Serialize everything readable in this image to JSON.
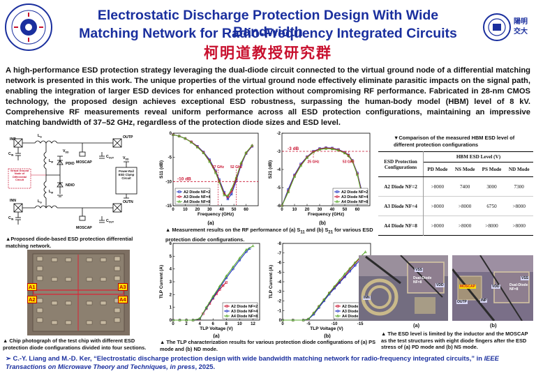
{
  "header": {
    "title_line1": "Electrostatic Discharge Protection Design With Wide Bandwidth",
    "title_line2": "Matching Network for Radio-Frequency Integrated Circuits",
    "lab_name": "柯明道教授研究群",
    "left_logo_text": "Institute of Electronics Engineering & Institute of Electronics, NCTU",
    "right_logo_text": "國立陽明交通大學 NYCU"
  },
  "abstract": "A high-performance ESD protection strategy leveraging the dual-diode circuit connected to the virtual ground node of a differential matching network is presented in this work. The unique properties of the virtual ground node effectively eliminate parasitic impacts on the signal path, enabling the integration of larger ESD devices for enhanced protection without compromising RF performance. Fabricated in 28-nm CMOS technology, the proposed design achieves exceptional ESD robustness, surpassing the human-body model (HBM) level of 8 kV. Comprehensive RF measurements reveal uniform performance across all ESD protection configurations, maintaining an impressive matching bandwidth of 37–52 GHz, regardless of the protection diode sizes and ESD level.",
  "schematic": {
    "labels": {
      "inp": "INP",
      "inn": "INN",
      "outp": "OUTP",
      "outn": "OUTN",
      "cin_top": "C",
      "cin_sub": "IN",
      "cin_bot": "C",
      "lm": "L",
      "lm_sub": "M",
      "lg_top": "L",
      "lg_sub": "G",
      "vdd": "V",
      "vdd_sub": "DD",
      "pdio": "PDIO",
      "ndio": "NDIO",
      "moscap_top": "MOSCAP",
      "moscap_bot": "MOSCAP",
      "cout": "C",
      "cout_sub": "OUT",
      "vdd2": "V",
      "vdd2_sub": "DD",
      "virtual_ground": "Virtual Ground Node of Differential Circuit",
      "clamp_box": "Power-Rail ESD Clamp Circuit"
    },
    "caption": "▲Proposed diode-based ESD protection differential matching network."
  },
  "s11_chart": {
    "panel_label": "(a)",
    "markers": {
      "db": "-10 dB",
      "f1": "37 GHz",
      "f2": "52 GHz"
    }
  },
  "s21_chart": {
    "panel_label": "(b)",
    "markers": {
      "db": "-3 dB",
      "f1": "25 GHz",
      "f2": "53 GHz"
    }
  },
  "rf_caption_a": "▲ Measurement results on the RF performance of (a) S",
  "rf_caption_sub11": "11",
  "rf_caption_b": " and (b) S",
  "rf_caption_sub21": "21",
  "rf_caption_c": " for various ESD protection diode configurations.",
  "table": {
    "caption": "▼Comparison of the measured HBM ESD level of different protection configurations",
    "group_header": "HBM ESD Level (V)",
    "config_header": "ESD Protection Configurations",
    "modes": [
      "PD Mode",
      "NS Mode",
      "PS Mode",
      "ND Mode"
    ],
    "rows": [
      {
        "config": "A2 Diode NF=2",
        "values": [
          ">8000",
          "7400",
          "3000",
          "7300"
        ]
      },
      {
        "config": "A3 Diode NF=4",
        "values": [
          ">8000",
          ">8000",
          "6750",
          ">8000"
        ]
      },
      {
        "config": "A4 Diode NF=8",
        "values": [
          ">8000",
          ">8000",
          ">8000",
          ">8000"
        ]
      }
    ]
  },
  "chip_photo": {
    "labels": [
      "A1",
      "A2",
      "A3",
      "A4"
    ],
    "caption": "▲ Chip photograph of the test chip with different ESD protection diode configurations divided into four sections."
  },
  "tlp_caption": "▲ The TLP characterization results for various protection diode configurations of (a) PS mode and (b) ND mode.",
  "tlp_a": {
    "panel_label": "(a)"
  },
  "tlp_b": {
    "panel_label": "(b)"
  },
  "failure_photos": {
    "a_label": "(a)",
    "b_label": "(b)",
    "a_tags": [
      "VSS",
      "Dual-Diode NF=8",
      "VDD",
      "INN"
    ],
    "b_tags": [
      "VSS",
      "MOSCAP",
      "Dual-Diode NF=8",
      "VDD",
      "OUTP",
      "INP"
    ],
    "caption": "▲ The ESD level is limited by the inductor and the MOSCAP as the test structures with eight diode fingers after the ESD stress of (a) PD mode and (b) NS mode."
  },
  "reference": {
    "prefix": "➢ C.-Y. Liang and M.-D. Ker, “Electrostatic discharge protection design with wide bandwidth matching network for radio-frequency integrated circuits,” in ",
    "journal": "IEEE Transactions on Microwave Theory and Techniques, in press",
    "suffix": ", 2025."
  },
  "chart_data": [
    {
      "type": "line",
      "xlabel": "Frequency (GHz)",
      "ylabel": "S11 (dB)",
      "xlim": [
        0,
        70
      ],
      "ylim": [
        -15,
        0
      ],
      "xticks": [
        0,
        10,
        20,
        30,
        40,
        50,
        60
      ],
      "yticks": [
        0,
        -5,
        -10,
        -15
      ],
      "legend_position": "bottom-left",
      "series": [
        {
          "name": "A2 Diode NF=2",
          "color": "#1c2fbf",
          "x": [
            0,
            5,
            10,
            15,
            20,
            25,
            30,
            35,
            38,
            42,
            45,
            48,
            52,
            56,
            60,
            65
          ],
          "y": [
            -0.3,
            -0.6,
            -1.1,
            -1.8,
            -2.7,
            -3.9,
            -5.5,
            -7.8,
            -9.6,
            -12.2,
            -13.6,
            -12.6,
            -9.8,
            -6.5,
            -4.2,
            -2.7
          ]
        },
        {
          "name": "A3 Diode NF=4",
          "color": "#c8102e",
          "x": [
            0,
            5,
            10,
            15,
            20,
            25,
            30,
            35,
            38,
            42,
            45,
            48,
            52,
            56,
            60,
            65
          ],
          "y": [
            -0.3,
            -0.6,
            -1.1,
            -1.8,
            -2.8,
            -4.0,
            -5.7,
            -8.0,
            -9.9,
            -12.5,
            -13.2,
            -12.0,
            -9.4,
            -6.3,
            -4.1,
            -2.6
          ]
        },
        {
          "name": "A4 Diode NF=8",
          "color": "#5aa82d",
          "x": [
            0,
            5,
            10,
            15,
            20,
            25,
            30,
            35,
            38,
            42,
            45,
            48,
            52,
            56,
            60,
            65
          ],
          "y": [
            -0.3,
            -0.6,
            -1.1,
            -1.9,
            -2.9,
            -4.1,
            -5.9,
            -8.2,
            -10.1,
            -12.8,
            -12.9,
            -11.6,
            -9.1,
            -6.1,
            -4.0,
            -2.5
          ]
        }
      ]
    },
    {
      "type": "line",
      "xlabel": "Frequency (GHz)",
      "ylabel": "S21 (dB)",
      "xlim": [
        0,
        70
      ],
      "ylim": [
        -6,
        -2
      ],
      "xticks": [
        0,
        10,
        20,
        30,
        40,
        50,
        60
      ],
      "yticks": [
        -2,
        -3,
        -4,
        -5,
        -6
      ],
      "legend_position": "bottom-right",
      "series": [
        {
          "name": "A2 Diode NF=2",
          "color": "#1c2fbf",
          "x": [
            0,
            5,
            10,
            15,
            20,
            25,
            30,
            35,
            40,
            45,
            50,
            53,
            56,
            60,
            65
          ],
          "y": [
            -6.0,
            -5.1,
            -4.3,
            -3.7,
            -3.3,
            -3.0,
            -2.85,
            -2.8,
            -2.82,
            -2.9,
            -3.05,
            -3.2,
            -3.5,
            -4.2,
            -5.6
          ]
        },
        {
          "name": "A3 Diode NF=4",
          "color": "#c8102e",
          "x": [
            0,
            5,
            10,
            15,
            20,
            25,
            30,
            35,
            40,
            45,
            50,
            53,
            56,
            60,
            65
          ],
          "y": [
            -6.0,
            -5.2,
            -4.35,
            -3.75,
            -3.32,
            -3.02,
            -2.87,
            -2.82,
            -2.84,
            -2.92,
            -3.07,
            -3.22,
            -3.52,
            -4.25,
            -5.7
          ]
        },
        {
          "name": "A4 Diode NF=8",
          "color": "#5aa82d",
          "x": [
            0,
            5,
            10,
            15,
            20,
            25,
            30,
            35,
            40,
            45,
            50,
            53,
            56,
            60,
            65
          ],
          "y": [
            -6.0,
            -5.25,
            -4.4,
            -3.8,
            -3.35,
            -3.05,
            -2.9,
            -2.85,
            -2.87,
            -2.95,
            -3.1,
            -3.25,
            -3.55,
            -4.3,
            -5.8
          ]
        }
      ]
    },
    {
      "type": "line",
      "xlabel": "TLP Voltage (V)",
      "ylabel": "TLP Current (A)",
      "xlim": [
        0,
        13
      ],
      "ylim": [
        0,
        6
      ],
      "xticks": [
        0,
        2,
        4,
        6,
        8,
        10,
        12
      ],
      "yticks": [
        0,
        1,
        2,
        3,
        4,
        5,
        6
      ],
      "legend_position": "bottom-right",
      "series": [
        {
          "name": "A2 Diode NF=2",
          "color": "#c8102e",
          "x": [
            0,
            1,
            2,
            3,
            4,
            4.5,
            5,
            5.5,
            6,
            6.5,
            7,
            7.5,
            8
          ],
          "y": [
            0,
            0,
            0,
            0,
            0.08,
            0.5,
            0.9,
            1.3,
            1.7,
            2.05,
            2.4,
            2.7,
            2.95
          ]
        },
        {
          "name": "A3 Diode NF=4",
          "color": "#1c2fbf",
          "x": [
            0,
            1,
            2,
            3,
            4,
            5,
            6,
            7,
            8,
            9,
            10,
            11,
            11.5
          ],
          "y": [
            0,
            0,
            0,
            0,
            0.1,
            0.95,
            1.75,
            2.55,
            3.3,
            4.0,
            4.7,
            5.35,
            5.6
          ]
        },
        {
          "name": "A4 Diode NF=8",
          "color": "#5aa82d",
          "x": [
            0,
            1,
            2,
            3,
            4,
            5,
            6,
            7,
            8,
            9,
            10,
            11,
            12
          ],
          "y": [
            0,
            0,
            0,
            0,
            0.12,
            1.0,
            1.85,
            2.65,
            3.45,
            4.15,
            4.85,
            5.5,
            5.8
          ]
        }
      ]
    },
    {
      "type": "line",
      "xlabel": "TLP Voltage (V)",
      "ylabel": "TLP Current (A)",
      "xlim": [
        0,
        -17
      ],
      "ylim": [
        0,
        -8
      ],
      "xticks": [
        0,
        -5,
        -10,
        -15
      ],
      "yticks": [
        0,
        -1,
        -2,
        -3,
        -4,
        -5,
        -6,
        -7,
        -8
      ],
      "legend_position": "bottom-right",
      "series": [
        {
          "name": "A2 Diode NF=2",
          "color": "#c8102e",
          "x": [
            0,
            -2,
            -4,
            -5,
            -6,
            -7,
            -8,
            -9,
            -10,
            -11,
            -12,
            -13,
            -14,
            -15
          ],
          "y": [
            0,
            0,
            0,
            -0.1,
            -0.7,
            -1.4,
            -2.1,
            -2.8,
            -3.4,
            -4.0,
            -4.6,
            -5.3,
            -5.9,
            -6.5
          ]
        },
        {
          "name": "A3 Diode NF=4",
          "color": "#1c2fbf",
          "x": [
            0,
            -2,
            -4,
            -5,
            -6,
            -7,
            -8,
            -9,
            -10,
            -11,
            -12,
            -13,
            -14,
            -15
          ],
          "y": [
            0,
            0,
            0,
            -0.1,
            -0.6,
            -1.3,
            -2.0,
            -2.7,
            -3.3,
            -3.9,
            -4.5,
            -5.1,
            -5.7,
            -6.3
          ]
        },
        {
          "name": "A4 Diode NF=8",
          "color": "#5aa82d",
          "x": [
            0,
            -2,
            -4,
            -5,
            -6,
            -7,
            -8,
            -9,
            -10,
            -11,
            -12,
            -13,
            -14,
            -15,
            -16
          ],
          "y": [
            0,
            0,
            0,
            -0.12,
            -0.75,
            -1.45,
            -2.15,
            -2.85,
            -3.5,
            -4.15,
            -4.8,
            -5.4,
            -6.0,
            -6.6,
            -7.1
          ]
        }
      ]
    }
  ]
}
